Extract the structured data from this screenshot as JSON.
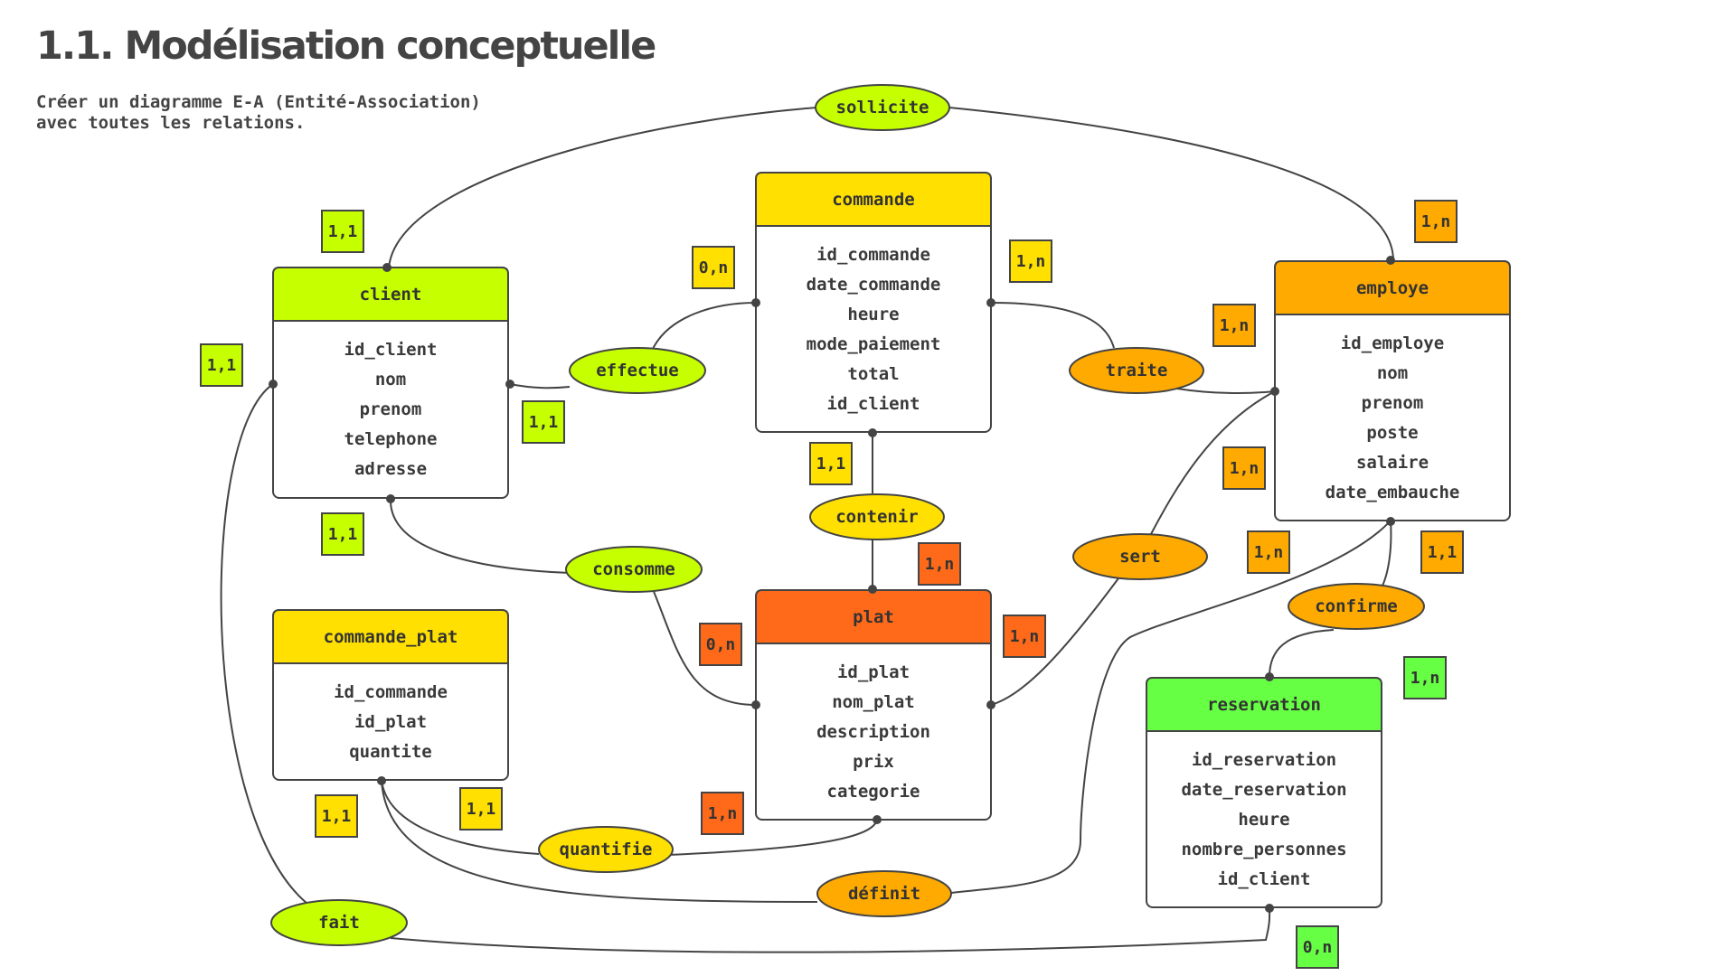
{
  "header": {
    "title": "1.1. Modélisation conceptuelle",
    "subtitle": "Créer un diagramme E-A (Entité-Association)\navec toutes les relations."
  },
  "colors": {
    "lime": "#c6ff00",
    "yellow": "#ffe000",
    "orange": "#ffaa00",
    "red_orange": "#ff6a1a",
    "green": "#66ff44",
    "stroke": "#444444"
  },
  "entities": {
    "client": {
      "title": "client",
      "attributes": [
        "id_client",
        "nom",
        "prenom",
        "telephone",
        "adresse"
      ],
      "color": "#c6ff00"
    },
    "commande": {
      "title": "commande",
      "attributes": [
        "id_commande",
        "date_commande",
        "heure",
        "mode_paiement",
        "total",
        "id_client"
      ],
      "color": "#ffe000"
    },
    "employe": {
      "title": "employe",
      "attributes": [
        "id_employe",
        "nom",
        "prenom",
        "poste",
        "salaire",
        "date_embauche"
      ],
      "color": "#ffaa00"
    },
    "plat": {
      "title": "plat",
      "attributes": [
        "id_plat",
        "nom_plat",
        "description",
        "prix",
        "categorie"
      ],
      "color": "#ff6a1a"
    },
    "commande_plat": {
      "title": "commande_plat",
      "attributes": [
        "id_commande",
        "id_plat",
        "quantite"
      ],
      "color": "#ffe000"
    },
    "reservation": {
      "title": "reservation",
      "attributes": [
        "id_reservation",
        "date_reservation",
        "heure",
        "nombre_personnes",
        "id_client"
      ],
      "color": "#66ff44"
    }
  },
  "associations": {
    "sollicite": {
      "label": "sollicite",
      "color": "#c6ff00"
    },
    "effectue": {
      "label": "effectue",
      "color": "#c6ff00"
    },
    "traite": {
      "label": "traite",
      "color": "#ffaa00"
    },
    "contenir": {
      "label": "contenir",
      "color": "#ffe000"
    },
    "consomme": {
      "label": "consomme",
      "color": "#c6ff00"
    },
    "sert": {
      "label": "sert",
      "color": "#ffaa00"
    },
    "confirme": {
      "label": "confirme",
      "color": "#ffaa00"
    },
    "quantifie": {
      "label": "quantifie",
      "color": "#ffe000"
    },
    "definit": {
      "label": "définit",
      "color": "#ffaa00"
    },
    "fait": {
      "label": "fait",
      "color": "#c6ff00"
    }
  },
  "cardinalities": {
    "sollicite_client": {
      "label": "1,1",
      "color": "#c6ff00"
    },
    "sollicite_employe": {
      "label": "1,n",
      "color": "#ffaa00"
    },
    "effectue_commande": {
      "label": "0,n",
      "color": "#ffe000"
    },
    "effectue_client": {
      "label": "1,1",
      "color": "#c6ff00"
    },
    "fait_client": {
      "label": "1,1",
      "color": "#c6ff00"
    },
    "traite_commande": {
      "label": "1,n",
      "color": "#ffe000"
    },
    "traite_employe": {
      "label": "1,n",
      "color": "#ffaa00"
    },
    "sert_employe": {
      "label": "1,n",
      "color": "#ffaa00"
    },
    "contenir_commande": {
      "label": "1,1",
      "color": "#ffe000"
    },
    "contenir_plat": {
      "label": "1,n",
      "color": "#ff6a1a"
    },
    "consomme_client": {
      "label": "1,1",
      "color": "#c6ff00"
    },
    "consomme_plat": {
      "label": "0,n",
      "color": "#ff6a1a"
    },
    "sert_plat": {
      "label": "1,n",
      "color": "#ff6a1a"
    },
    "definit_employe": {
      "label": "1,n",
      "color": "#ffaa00"
    },
    "confirme_employe": {
      "label": "1,1",
      "color": "#ffaa00"
    },
    "confirme_reservation": {
      "label": "1,n",
      "color": "#66ff44"
    },
    "definit_commande_plat": {
      "label": "1,1",
      "color": "#ffe000"
    },
    "quantifie_commande_plat": {
      "label": "1,1",
      "color": "#ffe000"
    },
    "quantifie_plat": {
      "label": "1,n",
      "color": "#ff6a1a"
    },
    "fait_reservation": {
      "label": "0,n",
      "color": "#66ff44"
    }
  }
}
